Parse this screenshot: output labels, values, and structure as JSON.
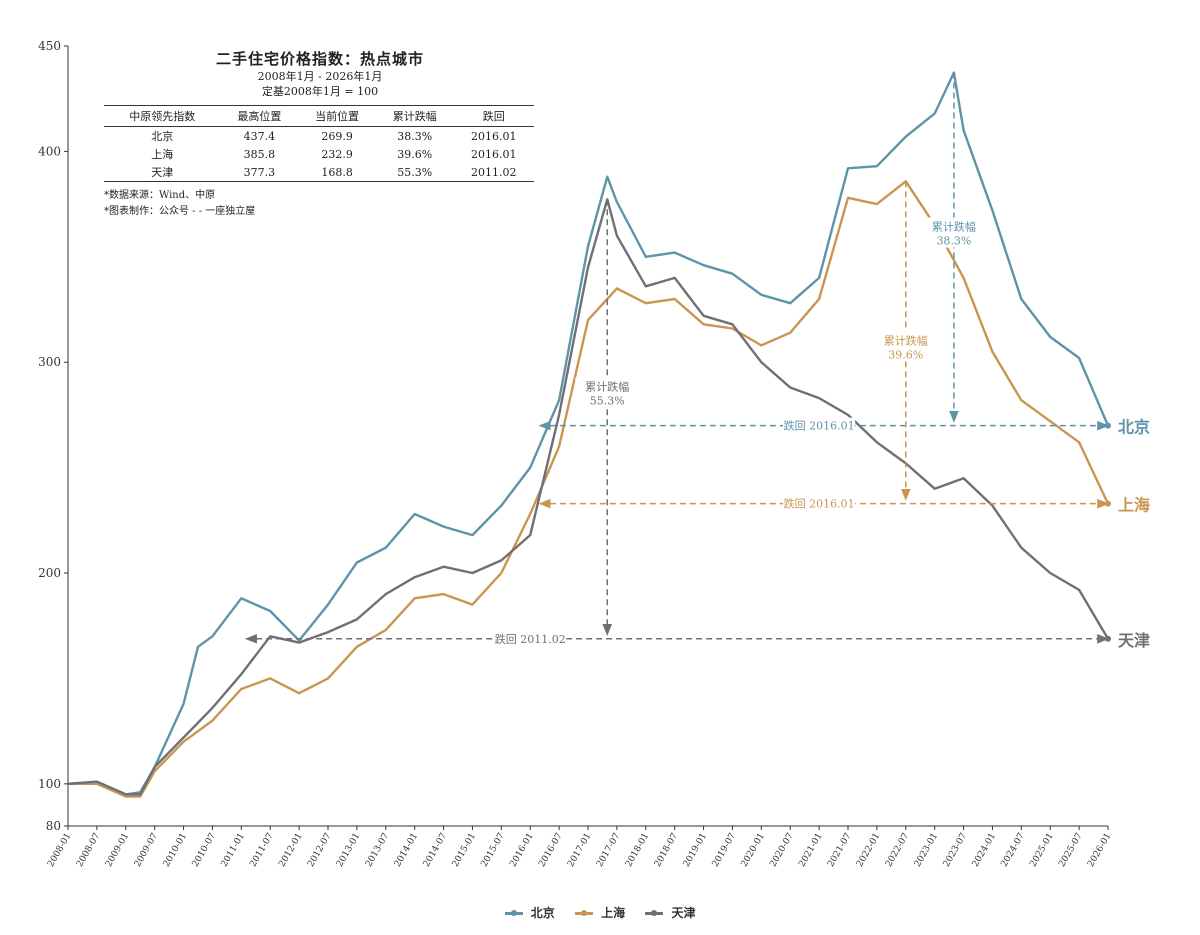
{
  "chart_data": {
    "type": "line",
    "title": "二手住宅价格指数：热点城市",
    "subtitle": "2008年1月 - 2026年1月",
    "base_note": "定基2008年1月 = 100",
    "ylim": [
      80,
      450
    ],
    "y_ticks": [
      80,
      100,
      200,
      300,
      400,
      450
    ],
    "x_ticks": [
      "2008-01",
      "2008-07",
      "2009-01",
      "2009-07",
      "2010-01",
      "2010-07",
      "2011-01",
      "2011-07",
      "2012-01",
      "2012-07",
      "2013-01",
      "2013-07",
      "2014-01",
      "2014-07",
      "2015-01",
      "2015-07",
      "2016-01",
      "2016-07",
      "2017-01",
      "2017-07",
      "2018-01",
      "2018-07",
      "2019-01",
      "2019-07",
      "2020-01",
      "2020-07",
      "2021-01",
      "2021-07",
      "2022-01",
      "2022-07",
      "2023-01",
      "2023-07",
      "2024-01",
      "2024-07",
      "2025-01",
      "2025-07",
      "2026-01"
    ],
    "series": [
      {
        "name": "北京",
        "color": "#5f93a8",
        "points": [
          [
            "2008-01",
            100
          ],
          [
            "2008-07",
            101
          ],
          [
            "2009-01",
            95
          ],
          [
            "2009-04",
            96
          ],
          [
            "2009-07",
            108
          ],
          [
            "2010-01",
            138
          ],
          [
            "2010-04",
            165
          ],
          [
            "2010-07",
            170
          ],
          [
            "2011-01",
            188
          ],
          [
            "2011-07",
            182
          ],
          [
            "2012-01",
            168
          ],
          [
            "2012-07",
            185
          ],
          [
            "2013-01",
            205
          ],
          [
            "2013-07",
            212
          ],
          [
            "2014-01",
            228
          ],
          [
            "2014-07",
            222
          ],
          [
            "2015-01",
            218
          ],
          [
            "2015-07",
            232
          ],
          [
            "2016-01",
            250
          ],
          [
            "2016-07",
            282
          ],
          [
            "2017-01",
            355
          ],
          [
            "2017-05",
            388
          ],
          [
            "2017-07",
            376
          ],
          [
            "2018-01",
            350
          ],
          [
            "2018-07",
            352
          ],
          [
            "2019-01",
            346
          ],
          [
            "2019-07",
            342
          ],
          [
            "2020-01",
            332
          ],
          [
            "2020-07",
            328
          ],
          [
            "2021-01",
            340
          ],
          [
            "2021-07",
            392
          ],
          [
            "2022-01",
            393
          ],
          [
            "2022-07",
            407
          ],
          [
            "2023-01",
            418
          ],
          [
            "2023-05",
            437.4
          ],
          [
            "2023-07",
            410
          ],
          [
            "2024-01",
            372
          ],
          [
            "2024-07",
            330
          ],
          [
            "2025-01",
            312
          ],
          [
            "2025-07",
            302
          ],
          [
            "2026-01",
            269.9
          ]
        ]
      },
      {
        "name": "上海",
        "color": "#c8964f",
        "points": [
          [
            "2008-01",
            100
          ],
          [
            "2008-07",
            100
          ],
          [
            "2009-01",
            94
          ],
          [
            "2009-04",
            94
          ],
          [
            "2009-07",
            106
          ],
          [
            "2010-01",
            120
          ],
          [
            "2010-07",
            130
          ],
          [
            "2011-01",
            145
          ],
          [
            "2011-07",
            150
          ],
          [
            "2012-01",
            143
          ],
          [
            "2012-07",
            150
          ],
          [
            "2013-01",
            165
          ],
          [
            "2013-07",
            173
          ],
          [
            "2014-01",
            188
          ],
          [
            "2014-07",
            190
          ],
          [
            "2015-01",
            185
          ],
          [
            "2015-07",
            200
          ],
          [
            "2016-01",
            228
          ],
          [
            "2016-07",
            260
          ],
          [
            "2017-01",
            320
          ],
          [
            "2017-07",
            335
          ],
          [
            "2018-01",
            328
          ],
          [
            "2018-07",
            330
          ],
          [
            "2019-01",
            318
          ],
          [
            "2019-07",
            316
          ],
          [
            "2020-01",
            308
          ],
          [
            "2020-07",
            314
          ],
          [
            "2021-01",
            330
          ],
          [
            "2021-07",
            378
          ],
          [
            "2022-01",
            375
          ],
          [
            "2022-07",
            385.8
          ],
          [
            "2023-01",
            365
          ],
          [
            "2023-07",
            340
          ],
          [
            "2024-01",
            305
          ],
          [
            "2024-07",
            282
          ],
          [
            "2025-01",
            272
          ],
          [
            "2025-07",
            262
          ],
          [
            "2026-01",
            232.9
          ]
        ]
      },
      {
        "name": "天津",
        "color": "#6f6f76",
        "points": [
          [
            "2008-01",
            100
          ],
          [
            "2008-07",
            101
          ],
          [
            "2009-01",
            95
          ],
          [
            "2009-04",
            95
          ],
          [
            "2009-07",
            108
          ],
          [
            "2010-01",
            122
          ],
          [
            "2010-07",
            136
          ],
          [
            "2011-01",
            152
          ],
          [
            "2011-07",
            170
          ],
          [
            "2012-01",
            167
          ],
          [
            "2012-07",
            172
          ],
          [
            "2013-01",
            178
          ],
          [
            "2013-07",
            190
          ],
          [
            "2014-01",
            198
          ],
          [
            "2014-07",
            203
          ],
          [
            "2015-01",
            200
          ],
          [
            "2015-07",
            206
          ],
          [
            "2016-01",
            218
          ],
          [
            "2016-07",
            275
          ],
          [
            "2017-01",
            345
          ],
          [
            "2017-05",
            377.3
          ],
          [
            "2017-07",
            360
          ],
          [
            "2018-01",
            336
          ],
          [
            "2018-07",
            340
          ],
          [
            "2019-01",
            322
          ],
          [
            "2019-07",
            318
          ],
          [
            "2020-01",
            300
          ],
          [
            "2020-07",
            288
          ],
          [
            "2021-01",
            283
          ],
          [
            "2021-07",
            275
          ],
          [
            "2022-01",
            262
          ],
          [
            "2022-07",
            252
          ],
          [
            "2023-01",
            240
          ],
          [
            "2023-07",
            245
          ],
          [
            "2024-01",
            232
          ],
          [
            "2024-07",
            212
          ],
          [
            "2025-01",
            200
          ],
          [
            "2025-07",
            192
          ],
          [
            "2026-01",
            168.8
          ]
        ]
      }
    ],
    "reference_lines": [
      {
        "series": "北京",
        "value": 269.9,
        "from": "2016-03",
        "to": "2026-01",
        "label": "跌回 2016.01",
        "label_at": "2021-01"
      },
      {
        "series": "上海",
        "value": 232.9,
        "from": "2016-03",
        "to": "2026-01",
        "label": "跌回 2016.01",
        "label_at": "2021-01"
      },
      {
        "series": "天津",
        "value": 168.8,
        "from": "2011-02",
        "to": "2026-01",
        "label": "跌回 2011.02",
        "label_at": "2016-01"
      }
    ],
    "drop_annotations": [
      {
        "series": "北京",
        "at": "2023-05",
        "from": 437.4,
        "to": 269.9,
        "label1": "累计跌幅",
        "label2": "38.3%",
        "label_value": 362
      },
      {
        "series": "上海",
        "at": "2022-07",
        "from": 385.8,
        "to": 232.9,
        "label1": "累计跌幅",
        "label2": "39.6%",
        "label_value": 308
      },
      {
        "series": "天津",
        "at": "2017-05",
        "from": 377.3,
        "to": 168.8,
        "label1": "累计跌幅",
        "label2": "55.3%",
        "label_value": 286
      }
    ],
    "end_labels": [
      "北京",
      "上海",
      "天津"
    ],
    "legend": [
      "北京",
      "上海",
      "天津"
    ],
    "legend_position": "bottom-center"
  },
  "info_table": {
    "headers": [
      "中原领先指数",
      "最高位置",
      "当前位置",
      "累计跌幅",
      "跌回"
    ],
    "rows": [
      [
        "北京",
        "437.4",
        "269.9",
        "38.3%",
        "2016.01"
      ],
      [
        "上海",
        "385.8",
        "232.9",
        "39.6%",
        "2016.01"
      ],
      [
        "天津",
        "377.3",
        "168.8",
        "55.3%",
        "2011.02"
      ]
    ],
    "note_source": "*数据来源：Wind、中原",
    "note_author": "*图表制作：公众号 - - 一座独立屋"
  }
}
